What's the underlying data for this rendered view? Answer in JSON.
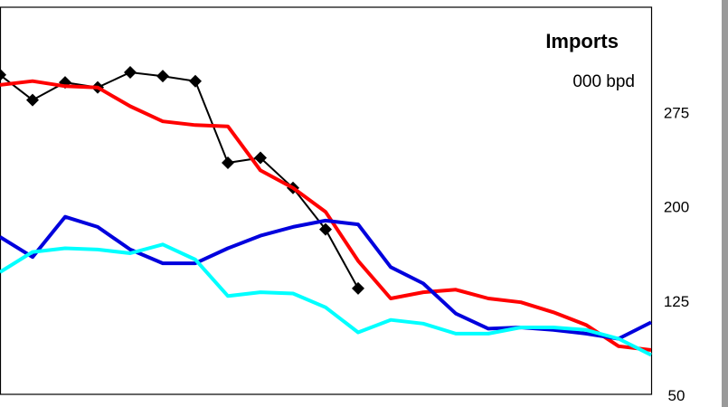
{
  "chart_data": {
    "type": "line",
    "title": "Imports",
    "subtitle": "000 bpd",
    "ylim": [
      50,
      325
    ],
    "yticks": [
      50,
      125,
      200,
      275
    ],
    "y_axis_side": "right",
    "grid": false,
    "legend": "none",
    "series": [
      {
        "color": "#000000",
        "marker": "diamond",
        "values": [
          305,
          285,
          299,
          295,
          307,
          304,
          300,
          235,
          239,
          215,
          182,
          135
        ]
      },
      {
        "color": "#ff0000",
        "values": [
          297,
          300,
          296,
          295,
          280,
          268,
          265,
          264,
          229,
          215,
          196,
          157,
          127,
          132,
          134,
          127,
          124,
          116,
          106,
          89,
          86
        ]
      },
      {
        "color": "#0000dd",
        "values": [
          176,
          160,
          192,
          184,
          166,
          155,
          155,
          167,
          177,
          184,
          189,
          186,
          152,
          139,
          115,
          103,
          104,
          102,
          99,
          95,
          108
        ]
      },
      {
        "color": "#00ffff",
        "values": [
          148,
          164,
          167,
          166,
          163,
          170,
          158,
          129,
          132,
          131,
          120,
          100,
          110,
          107,
          99,
          99,
          104,
          104,
          102,
          95,
          82
        ]
      }
    ]
  }
}
